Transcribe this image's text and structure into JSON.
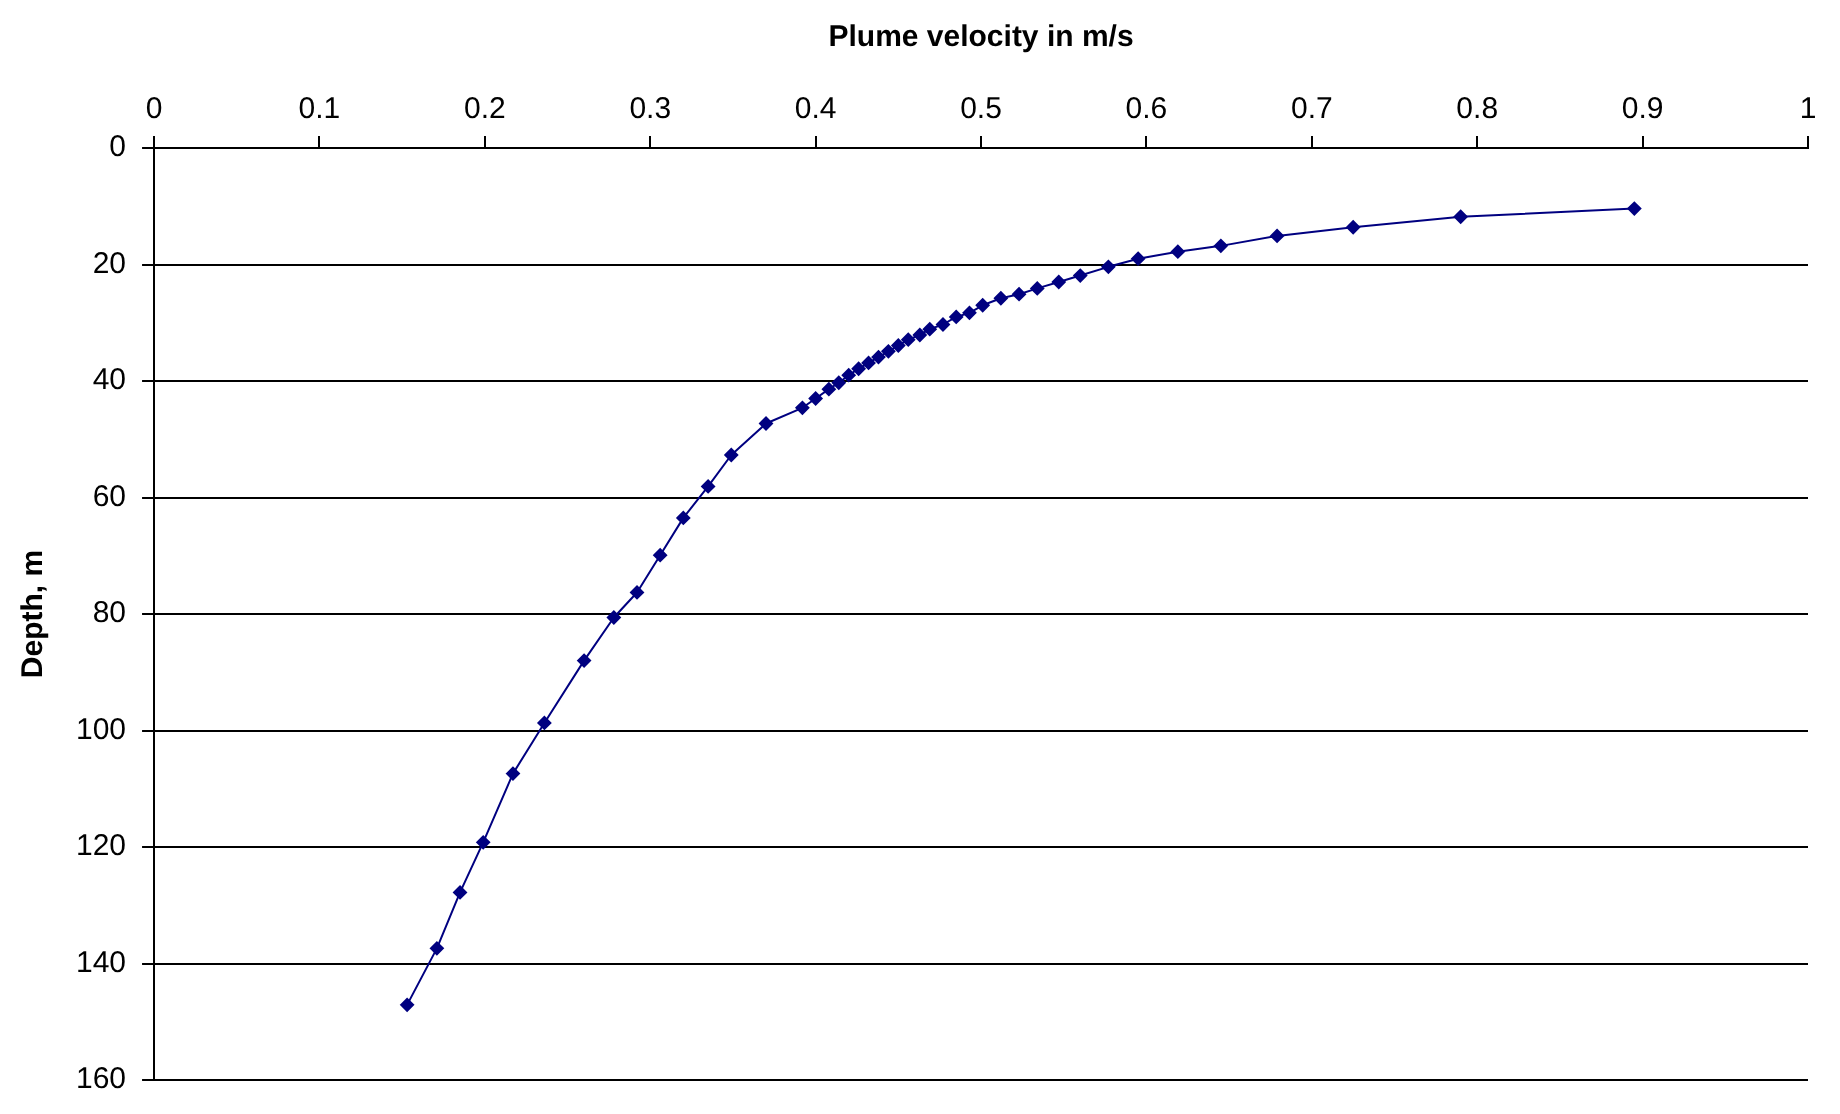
{
  "chart_data": {
    "type": "line",
    "xlabel": "Plume velocity in m/s",
    "ylabel": "Depth, m",
    "xlim": [
      0,
      1
    ],
    "xticks": [
      0,
      0.1,
      0.2,
      0.3,
      0.4,
      0.5,
      0.6,
      0.7,
      0.8,
      0.9,
      1
    ],
    "ylim": [
      160,
      0
    ],
    "yticks": [
      0,
      20,
      40,
      60,
      80,
      100,
      120,
      140,
      160
    ],
    "grid": "y",
    "marker": "diamond",
    "line_style": "solid",
    "series": [
      {
        "color": "#000080",
        "x": [
          0.895,
          0.79,
          0.725,
          0.679,
          0.645,
          0.619,
          0.595,
          0.577,
          0.56,
          0.547,
          0.534,
          0.523,
          0.512,
          0.501,
          0.493,
          0.485,
          0.477,
          0.469,
          0.463,
          0.456,
          0.45,
          0.444,
          0.438,
          0.432,
          0.426,
          0.42,
          0.414,
          0.408,
          0.4,
          0.392,
          0.37,
          0.349,
          0.335,
          0.32,
          0.306,
          0.292,
          0.278,
          0.26,
          0.236,
          0.217,
          0.199,
          0.185,
          0.171,
          0.153
        ],
        "values": [
          10.4,
          11.8,
          13.6,
          15.1,
          16.8,
          17.8,
          19,
          20.4,
          21.9,
          23,
          24.1,
          25.1,
          25.8,
          27,
          28.3,
          29,
          30.3,
          31.1,
          32.1,
          32.9,
          33.9,
          34.9,
          35.9,
          36.9,
          37.9,
          39,
          40.3,
          41.4,
          43,
          44.6,
          47.3,
          52.7,
          58.1,
          63.5,
          69.9,
          76.3,
          80.6,
          88,
          98.7,
          107.4,
          119.2,
          127.8,
          137.4,
          147.1
        ]
      }
    ]
  }
}
